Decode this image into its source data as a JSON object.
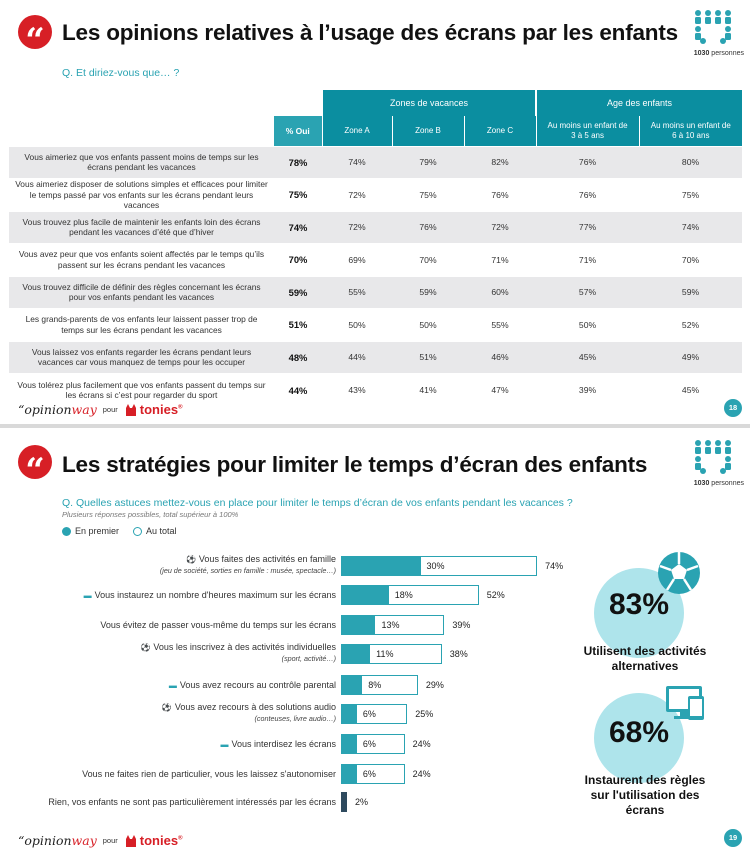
{
  "slide1": {
    "title": "Les opinions relatives à l’usage des écrans par les enfants",
    "people_count": "1030",
    "people_word": "personnes",
    "question": "Q. Et diriez-vous que… ?",
    "table": {
      "group_headers": [
        "Zones de vacances",
        "Age des enfants"
      ],
      "pct_header": "% Oui",
      "sub_headers": [
        "Zone A",
        "Zone B",
        "Zone C",
        "Au moins un enfant de 3 à 5 ans",
        "Au moins un enfant de 6 à 10 ans"
      ],
      "rows": [
        {
          "label": "Vous aimeriez que vos enfants passent moins de temps sur les écrans pendant les vacances",
          "total": "78%",
          "values": [
            "74%",
            "79%",
            "82%",
            "76%",
            "80%"
          ]
        },
        {
          "label": "Vous aimeriez disposer de solutions simples et efficaces pour limiter le temps passé par vos enfants sur les écrans pendant leurs vacances",
          "total": "75%",
          "values": [
            "72%",
            "75%",
            "76%",
            "76%",
            "75%"
          ]
        },
        {
          "label": "Vous trouvez plus facile de maintenir les enfants loin des écrans pendant les vacances d’été que d’hiver",
          "total": "74%",
          "values": [
            "72%",
            "76%",
            "72%",
            "77%",
            "74%"
          ]
        },
        {
          "label": "Vous avez peur que vos enfants soient affectés par le temps qu’ils passent sur les écrans pendant les vacances",
          "total": "70%",
          "values": [
            "69%",
            "70%",
            "71%",
            "71%",
            "70%"
          ]
        },
        {
          "label": "Vous trouvez difficile de définir des règles concernant les écrans pour vos enfants pendant les vacances",
          "total": "59%",
          "values": [
            "55%",
            "59%",
            "60%",
            "57%",
            "59%"
          ]
        },
        {
          "label": "Les grands-parents de vos enfants leur laissent passer trop de temps sur les écrans pendant les vacances",
          "total": "51%",
          "values": [
            "50%",
            "50%",
            "55%",
            "50%",
            "52%"
          ]
        },
        {
          "label": "Vous laissez vos enfants regarder les écrans pendant leurs vacances car vous manquez de temps pour les occuper",
          "total": "48%",
          "values": [
            "44%",
            "51%",
            "46%",
            "45%",
            "49%"
          ]
        },
        {
          "label": "Vous tolérez plus facilement que vos enfants passent du temps sur les écrans si c’est pour regarder du sport",
          "total": "44%",
          "values": [
            "43%",
            "41%",
            "47%",
            "39%",
            "45%"
          ]
        }
      ]
    },
    "page_number": "18"
  },
  "slide2": {
    "title": "Les stratégies pour limiter le temps d’écran des enfants",
    "people_count": "1030",
    "people_word": "personnes",
    "question": "Q. Quelles astuces mettez-vous en place pour limiter le temps d’écran de vos enfants pendant les vacances ?",
    "note": "Plusieurs réponses possibles, total supérieur à 100%",
    "legend": [
      "En premier",
      "Au total"
    ],
    "highlights": [
      {
        "value": "83%",
        "caption_line1": "Utilisent des activités",
        "caption_line2": "alternatives",
        "caption_line3": ""
      },
      {
        "value": "68%",
        "caption_line1": "Instaurent des règles",
        "caption_line2": "sur l'utilisation des",
        "caption_line3": "écrans"
      }
    ],
    "page_number": "19"
  },
  "brand": {
    "opinion": "opinion",
    "way": "way",
    "pour": "pour",
    "tonies": "tonies",
    "reg": "®"
  },
  "colors": {
    "teal": "#2aa3b2",
    "dark_teal": "#0b8ea0",
    "red": "#d71f26",
    "light_bubble": "#aee4eb",
    "dark_bar": "#2e4a5e"
  },
  "chart_data": {
    "type": "bar",
    "orientation": "horizontal",
    "xlim": [
      0,
      100
    ],
    "categories": [
      "Vous faites des activités en famille",
      "Vous instaurez un nombre d'heures maximum sur les écrans",
      "Vous évitez de passer vous-même du temps sur les écrans",
      "Vous les inscrivez à des activités individuelles",
      "Vous avez recours au contrôle parental",
      "Vous avez recours à des solutions audio",
      "Vous interdisez les écrans",
      "Vous ne faites rien de particulier, vous les laissez s'autonomiser",
      "Rien, vos enfants ne sont pas particulièrement intéressés par les écrans"
    ],
    "category_details": [
      "(jeu de société, sorties en famille : musée, spectacle…)",
      "",
      "",
      "(sport, activité…)",
      "",
      "(conteuses, livre audio…)",
      "",
      "",
      ""
    ],
    "category_icons": [
      "ball-icon",
      "screen-icon",
      "",
      "ball-icon",
      "screen-icon",
      "ball-icon",
      "screen-icon",
      "",
      ""
    ],
    "series": [
      {
        "name": "En premier",
        "values": [
          30,
          18,
          13,
          11,
          8,
          6,
          6,
          6,
          2
        ]
      },
      {
        "name": "Au total",
        "values": [
          74,
          52,
          39,
          38,
          29,
          25,
          24,
          24,
          2
        ]
      }
    ],
    "value_labels": {
      "first": [
        "30%",
        "18%",
        "13%",
        "11%",
        "8%",
        "6%",
        "6%",
        "6%",
        ""
      ],
      "total": [
        "74%",
        "52%",
        "39%",
        "38%",
        "29%",
        "25%",
        "24%",
        "24%",
        "2%"
      ]
    }
  }
}
